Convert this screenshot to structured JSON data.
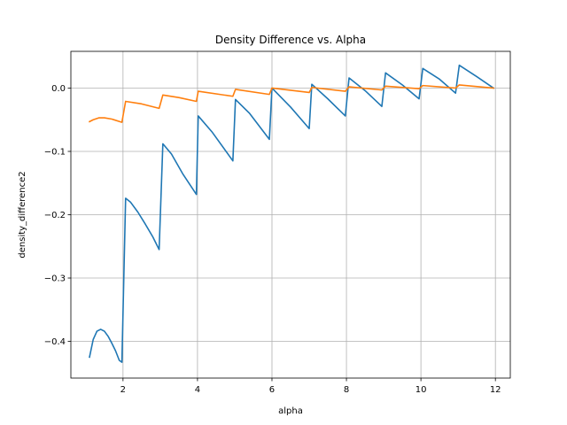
{
  "chart_data": {
    "type": "line",
    "title": "Density Difference vs. Alpha",
    "xlabel": "alpha",
    "ylabel": "density_difference2",
    "xlim": [
      0.6,
      12.4
    ],
    "ylim": [
      -0.458,
      0.058
    ],
    "xticks": [
      2,
      4,
      6,
      8,
      10,
      12
    ],
    "yticks": [
      0.0,
      -0.1,
      -0.2,
      -0.3,
      -0.4
    ],
    "xtick_labels": [
      "2",
      "4",
      "6",
      "8",
      "10",
      "12"
    ],
    "ytick_labels": [
      "0.0",
      "−0.1",
      "−0.2",
      "−0.3",
      "−0.4"
    ],
    "grid": true,
    "series": [
      {
        "color": "#1f77b4",
        "points": [
          [
            1.1,
            -0.425
          ],
          [
            1.2,
            -0.397
          ],
          [
            1.3,
            -0.384
          ],
          [
            1.4,
            -0.381
          ],
          [
            1.5,
            -0.384
          ],
          [
            1.6,
            -0.392
          ],
          [
            1.7,
            -0.403
          ],
          [
            1.8,
            -0.415
          ],
          [
            1.9,
            -0.43
          ],
          [
            1.97,
            -0.433
          ],
          [
            2.07,
            -0.174
          ],
          [
            2.2,
            -0.18
          ],
          [
            2.4,
            -0.196
          ],
          [
            2.6,
            -0.215
          ],
          [
            2.8,
            -0.235
          ],
          [
            2.97,
            -0.255
          ],
          [
            3.07,
            -0.088
          ],
          [
            3.3,
            -0.104
          ],
          [
            3.6,
            -0.135
          ],
          [
            3.97,
            -0.168
          ],
          [
            4.02,
            -0.044
          ],
          [
            4.4,
            -0.07
          ],
          [
            4.95,
            -0.115
          ],
          [
            5.02,
            -0.018
          ],
          [
            5.4,
            -0.04
          ],
          [
            5.93,
            -0.081
          ],
          [
            6.0,
            0.0
          ],
          [
            6.5,
            -0.03
          ],
          [
            7.0,
            -0.064
          ],
          [
            7.07,
            0.006
          ],
          [
            7.5,
            -0.017
          ],
          [
            7.97,
            -0.044
          ],
          [
            8.07,
            0.016
          ],
          [
            8.5,
            -0.004
          ],
          [
            8.95,
            -0.029
          ],
          [
            9.05,
            0.024
          ],
          [
            9.5,
            0.005
          ],
          [
            9.95,
            -0.017
          ],
          [
            10.05,
            0.031
          ],
          [
            10.5,
            0.014
          ],
          [
            10.93,
            -0.008
          ],
          [
            11.03,
            0.036
          ],
          [
            11.5,
            0.018
          ],
          [
            11.95,
            0.0
          ]
        ]
      },
      {
        "color": "#ff7f0e",
        "points": [
          [
            1.1,
            -0.053
          ],
          [
            1.2,
            -0.05
          ],
          [
            1.35,
            -0.047
          ],
          [
            1.5,
            -0.047
          ],
          [
            1.7,
            -0.049
          ],
          [
            1.97,
            -0.054
          ],
          [
            2.07,
            -0.021
          ],
          [
            2.5,
            -0.025
          ],
          [
            2.97,
            -0.032
          ],
          [
            3.07,
            -0.011
          ],
          [
            3.5,
            -0.015
          ],
          [
            3.97,
            -0.021
          ],
          [
            4.02,
            -0.005
          ],
          [
            4.95,
            -0.013
          ],
          [
            5.02,
            -0.002
          ],
          [
            5.93,
            -0.01
          ],
          [
            6.0,
            0.0
          ],
          [
            7.0,
            -0.007
          ],
          [
            7.07,
            0.001
          ],
          [
            7.97,
            -0.005
          ],
          [
            8.07,
            0.002
          ],
          [
            8.95,
            -0.003
          ],
          [
            9.05,
            0.003
          ],
          [
            9.95,
            -0.001
          ],
          [
            10.05,
            0.004
          ],
          [
            10.93,
            0.0
          ],
          [
            11.03,
            0.005
          ],
          [
            11.95,
            0.0
          ]
        ]
      }
    ]
  }
}
